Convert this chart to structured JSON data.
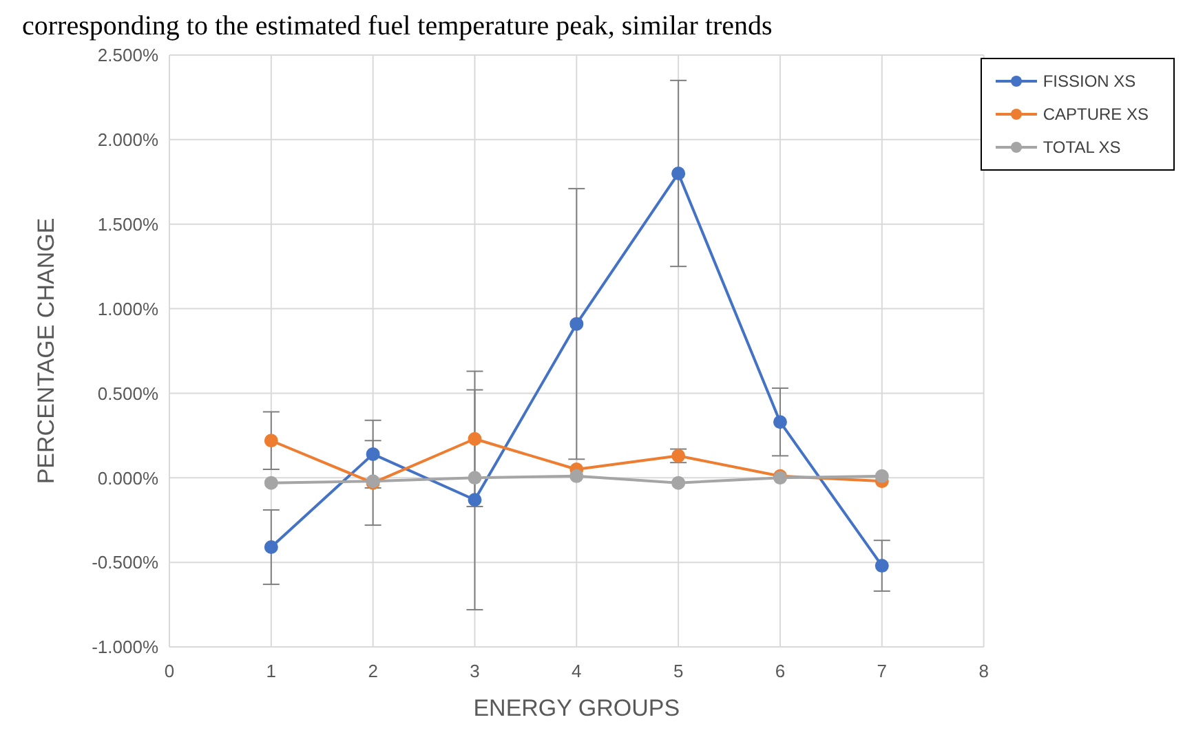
{
  "chart_data": {
    "type": "line",
    "xlabel": "ENERGY GROUPS",
    "ylabel": "PERCENTAGE CHANGE",
    "annotations": [
      "corresponding to the estimated fuel temperature peak, similar trends"
    ],
    "x": [
      1,
      2,
      3,
      4,
      5,
      6,
      7
    ],
    "series": [
      {
        "name": "FISSION XS",
        "color": "#4472c4",
        "values": [
          -0.41,
          0.14,
          -0.13,
          0.91,
          1.8,
          0.33,
          -0.52
        ],
        "errors": [
          0.22,
          0.2,
          0.65,
          0.8,
          0.55,
          0.2,
          0.15
        ]
      },
      {
        "name": "CAPTURE XS",
        "color": "#ed7d31",
        "values": [
          0.22,
          -0.03,
          0.23,
          0.05,
          0.13,
          0.01,
          -0.02
        ],
        "errors": [
          0.17,
          0.25,
          0.4,
          null,
          0.04,
          null,
          null
        ]
      },
      {
        "name": "TOTAL XS",
        "color": "#a5a5a5",
        "values": [
          -0.03,
          -0.02,
          0.0,
          0.01,
          -0.03,
          0.0,
          0.01
        ]
      }
    ],
    "xlim": [
      0,
      8
    ],
    "xticks": [
      0,
      1,
      2,
      3,
      4,
      5,
      6,
      7,
      8
    ],
    "ylim": [
      -1,
      2.5
    ],
    "yticks": [
      {
        "value": -1,
        "label": "-1.000%"
      },
      {
        "value": -0.5,
        "label": "-0.500%"
      },
      {
        "value": 0,
        "label": "0.000%"
      },
      {
        "value": 0.5,
        "label": "0.500%"
      },
      {
        "value": 1,
        "label": "1.000%"
      },
      {
        "value": 1.5,
        "label": "1.500%"
      },
      {
        "value": 2,
        "label": "2.000%"
      },
      {
        "value": 2.5,
        "label": "2.500%"
      }
    ],
    "grid": true,
    "legend": "top right",
    "marker": "circle",
    "line_style": "solid"
  }
}
